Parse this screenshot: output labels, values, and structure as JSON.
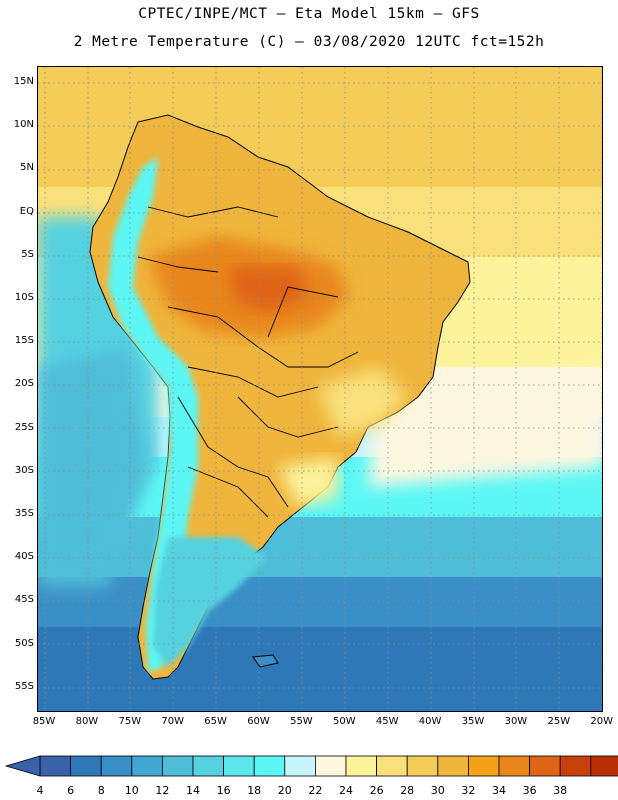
{
  "title_line1": "CPTEC/INPE/MCT –  Eta Model 15km – GFS",
  "title_line2": "2 Metre Temperature (C) – 03/08/2020 12UTC fct=152h",
  "map": {
    "region": "South America",
    "lat_labels": [
      "15N",
      "10N",
      "5N",
      "EQ",
      "5S",
      "10S",
      "15S",
      "20S",
      "25S",
      "30S",
      "35S",
      "40S",
      "45S",
      "50S",
      "55S"
    ],
    "lon_labels": [
      "85W",
      "80W",
      "75W",
      "70W",
      "65W",
      "60W",
      "55W",
      "50W",
      "45W",
      "40W",
      "35W",
      "30W",
      "25W",
      "20W"
    ]
  },
  "colorbar": {
    "labels": [
      "4",
      "6",
      "8",
      "10",
      "12",
      "14",
      "16",
      "18",
      "20",
      "22",
      "24",
      "26",
      "28",
      "30",
      "32",
      "34",
      "36",
      "38"
    ],
    "colors": [
      "#3a62a8",
      "#2f78b8",
      "#3a8fc6",
      "#41a7d2",
      "#4fbdd8",
      "#55d1e0",
      "#5ae6ec",
      "#5cf7f5",
      "#c8f5fb",
      "#fdf7e0",
      "#fdf39a",
      "#f9e07a",
      "#f4cd58",
      "#efb53c",
      "#f3a21a",
      "#e8861c",
      "#de6418",
      "#c8400c",
      "#b82e06"
    ],
    "low_color": "#3a62a8",
    "high_color": "#b82e06"
  }
}
